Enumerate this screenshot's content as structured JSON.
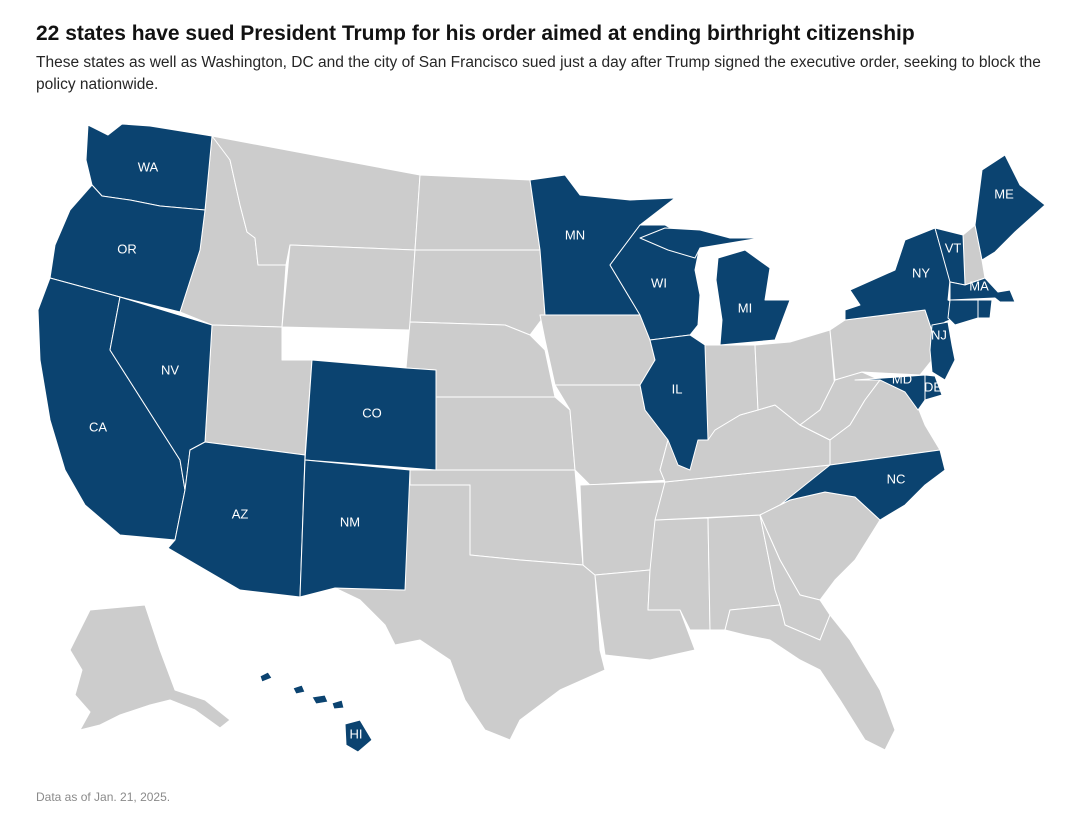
{
  "header": {
    "title": "22 states have sued President Trump for his order aimed at ending birthright citizenship",
    "subtitle": "These states as well as Washington, DC and the city of San Francisco sued just a day after Trump signed the executive order, seeking to block the policy nationwide."
  },
  "map": {
    "colors": {
      "sued": "#0b4370",
      "other": "#cccccc",
      "border": "#ffffff"
    },
    "sued_states": [
      "WA",
      "OR",
      "CA",
      "NV",
      "AZ",
      "CO",
      "NM",
      "MN",
      "WI",
      "MI",
      "IL",
      "NY",
      "VT",
      "ME",
      "MA",
      "RI",
      "CT",
      "NJ",
      "MD",
      "DE",
      "NC",
      "HI"
    ],
    "labels": {
      "WA": "WA",
      "OR": "OR",
      "CA": "CA",
      "NV": "NV",
      "AZ": "AZ",
      "CO": "CO",
      "NM": "NM",
      "MN": "MN",
      "WI": "WI",
      "MI": "MI",
      "IL": "IL",
      "NY": "NY",
      "VT": "VT",
      "ME": "ME",
      "MA": "MA",
      "NJ": "NJ",
      "MD": "MD",
      "DE": "DE",
      "NC": "NC",
      "HI": "HI"
    }
  },
  "footer": {
    "note": "Data as of Jan. 21, 2025."
  }
}
